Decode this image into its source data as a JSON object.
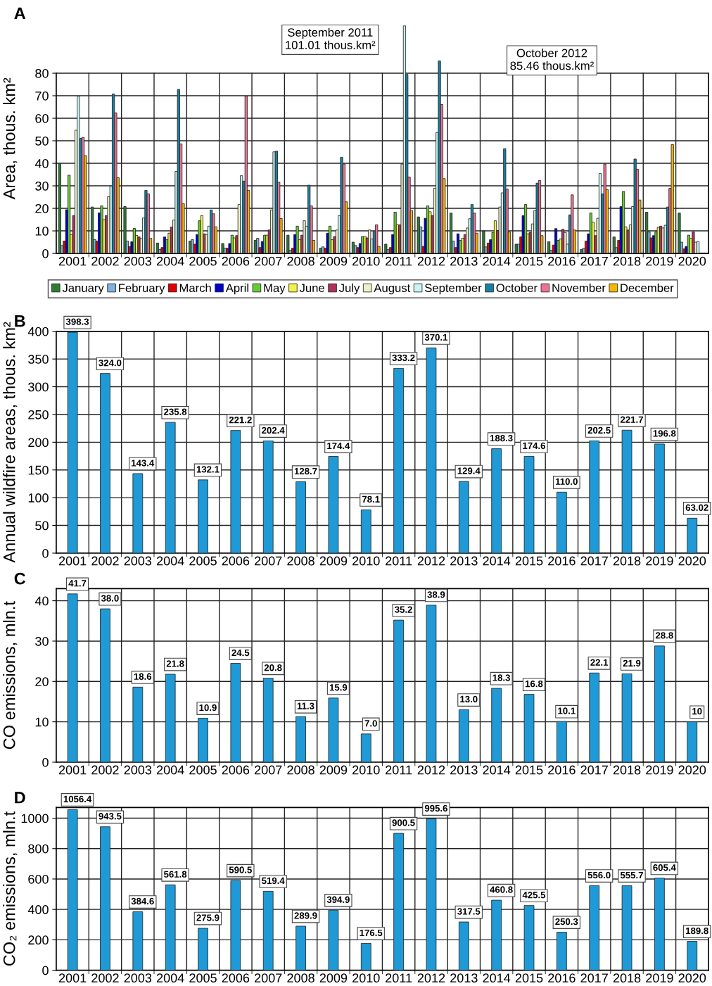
{
  "chart_data": [
    {
      "type": "bar",
      "title": "A",
      "ylabel": "Area, thous. km²",
      "categories": [
        "2001",
        "2002",
        "2003",
        "2004",
        "2005",
        "2006",
        "2007",
        "2008",
        "2009",
        "2010",
        "2011",
        "2012",
        "2013",
        "2014",
        "2015",
        "2016",
        "2017",
        "2018",
        "2019",
        "2020"
      ],
      "ylim": [
        0,
        102
      ],
      "yticks": [
        0,
        10,
        20,
        30,
        40,
        50,
        60,
        70,
        80
      ],
      "grid": true,
      "legend": "bottom",
      "series": [
        {
          "name": "January",
          "color": "#2e7d32",
          "values": [
            40,
            20.6,
            20.8,
            4.6,
            5.5,
            4.4,
            5.8,
            8.1,
            2.3,
            5.0,
            4.1,
            16.2,
            17.9,
            10.0,
            4.1,
            5.2,
            1.8,
            7.3,
            18.3,
            17.9
          ]
        },
        {
          "name": "February",
          "color": "#7fb2e0",
          "values": [
            3.5,
            6.1,
            5.5,
            1.7,
            6.1,
            2.3,
            6.7,
            1.4,
            2.9,
            3.5,
            1.7,
            11.8,
            5.5,
            2.9,
            4.1,
            1.4,
            2.3,
            2.6,
            9.5,
            5.0
          ]
        },
        {
          "name": "March",
          "color": "#e00000",
          "values": [
            5.5,
            5.5,
            3.1,
            2.6,
            4.1,
            2.3,
            2.6,
            2.3,
            2.3,
            2.6,
            2.6,
            3.1,
            2.6,
            4.6,
            7.3,
            3.7,
            5.5,
            5.8,
            6.9,
            2.0
          ]
        },
        {
          "name": "April",
          "color": "#0000cc",
          "values": [
            19.4,
            18.0,
            5.2,
            7.3,
            8.4,
            4.4,
            5.3,
            8.4,
            9.0,
            4.4,
            8.4,
            15.6,
            8.7,
            6.1,
            16.8,
            11.0,
            8.7,
            20.8,
            7.9,
            3.1
          ]
        },
        {
          "name": "May",
          "color": "#66cc33",
          "values": [
            34.7,
            21.1,
            11.1,
            6.1,
            14.5,
            8.1,
            8.1,
            12.1,
            12.1,
            7.5,
            18.3,
            21.1,
            5.8,
            9.3,
            21.7,
            5.8,
            17.9,
            27.5,
            9.5,
            8.1
          ]
        },
        {
          "name": "June",
          "color": "#f2f24a",
          "values": [
            8.4,
            15.0,
            8.0,
            9.0,
            16.8,
            6.9,
            8.1,
            6.1,
            6.1,
            7.5,
            12.7,
            18.5,
            6.7,
            14.5,
            8.7,
            6.4,
            13.9,
            11.8,
            11.6,
            6.7
          ]
        },
        {
          "name": "July",
          "color": "#b03060",
          "values": [
            16.8,
            16.8,
            7.3,
            11.7,
            8.7,
            7.9,
            10.4,
            8.1,
            7.5,
            6.9,
            12.7,
            16.8,
            8.4,
            10.1,
            9.3,
            10.7,
            7.9,
            10.4,
            12.1,
            9.5
          ]
        },
        {
          "name": "August",
          "color": "#f0eec8",
          "values": [
            54.7,
            25.2,
            6.6,
            14.8,
            8.4,
            21.7,
            19.3,
            14.5,
            10.4,
            10.4,
            39.7,
            28.9,
            11.3,
            20.6,
            13.1,
            9.3,
            15.6,
            12.7,
            11.3,
            5.0
          ]
        },
        {
          "name": "September",
          "color": "#c8f5f5",
          "values": [
            69.8,
            29.9,
            15.7,
            36.4,
            12.1,
            34.5,
            45.1,
            12.1,
            16.8,
            6.4,
            101.01,
            53.7,
            15.4,
            26.9,
            19.0,
            4.1,
            35.5,
            20.8,
            12.5,
            5.3
          ]
        },
        {
          "name": "October",
          "color": "#1a7fa0",
          "values": [
            51.1,
            70.8,
            28.0,
            72.8,
            19.3,
            32.1,
            45.4,
            30.3,
            42.7,
            9.6,
            79.5,
            85.46,
            21.7,
            46.5,
            31.2,
            17.1,
            26.4,
            41.9,
            20.6,
            null
          ]
        },
        {
          "name": "November",
          "color": "#f07090",
          "values": [
            51.5,
            62.4,
            26.4,
            48.6,
            17.6,
            69.8,
            31.6,
            21.1,
            39.7,
            12.7,
            33.9,
            66.1,
            17.9,
            28.6,
            32.4,
            26.0,
            39.7,
            37.4,
            28.9,
            null
          ]
        },
        {
          "name": "December",
          "color": "#f5b800",
          "values": [
            43.4,
            33.6,
            6.7,
            22.1,
            11.8,
            28.0,
            15.5,
            5.8,
            22.9,
            3.1,
            19.0,
            33.2,
            9.0,
            9.5,
            7.9,
            10.4,
            28.3,
            23.7,
            48.3,
            null
          ]
        }
      ],
      "annotations": [
        "September 2011\n101.01 thous.km²",
        "October 2012\n85.46 thous.km²"
      ]
    },
    {
      "type": "bar",
      "title": "B",
      "ylabel": "Annual wildfire areas, thous. km²",
      "categories": [
        "2001",
        "2002",
        "2003",
        "2004",
        "2005",
        "2006",
        "2007",
        "2008",
        "2009",
        "2010",
        "2011",
        "2012",
        "2013",
        "2014",
        "2015",
        "2016",
        "2017",
        "2018",
        "2019",
        "2020"
      ],
      "ylim": [
        0,
        400
      ],
      "yticks": [
        0,
        50,
        100,
        150,
        200,
        250,
        300,
        350,
        400
      ],
      "grid": true,
      "series": [
        {
          "color": "#1f9ad6",
          "values": [
            398.3,
            324.0,
            143.4,
            235.8,
            132.1,
            221.2,
            202.4,
            128.7,
            174.4,
            78.1,
            333.2,
            370.1,
            129.4,
            188.3,
            174.6,
            110.0,
            202.5,
            221.7,
            196.8,
            63.02
          ],
          "value_labels": [
            "398.3",
            "324.0",
            "143.4",
            "235.8",
            "132.1",
            "221.2",
            "202.4",
            "128.7",
            "174.4",
            "78.1",
            "333.2",
            "370.1",
            "129.4",
            "188.3",
            "174.6",
            "110.0",
            "202.5",
            "221.7",
            "196.8",
            "63.02"
          ]
        }
      ]
    },
    {
      "type": "bar",
      "title": "C",
      "ylabel": "CO emissions, mln.t",
      "categories": [
        "2001",
        "2002",
        "2003",
        "2004",
        "2005",
        "2006",
        "2007",
        "2008",
        "2009",
        "2010",
        "2011",
        "2012",
        "2013",
        "2014",
        "2015",
        "2016",
        "2017",
        "2018",
        "2019",
        "2020"
      ],
      "ylim": [
        0,
        43
      ],
      "yticks": [
        0,
        10,
        20,
        30,
        40
      ],
      "grid": true,
      "series": [
        {
          "color": "#1f9ad6",
          "values": [
            41.7,
            38.0,
            18.6,
            21.8,
            10.9,
            24.5,
            20.8,
            11.3,
            15.9,
            7.0,
            35.2,
            38.9,
            13.0,
            18.3,
            16.8,
            10.1,
            22.1,
            21.9,
            28.8,
            10
          ],
          "value_labels": [
            "41.7",
            "38.0",
            "18.6",
            "21.8",
            "10.9",
            "24.5",
            "20.8",
            "11.3",
            "15.9",
            "7.0",
            "35.2",
            "38.9",
            "13.0",
            "18.3",
            "16.8",
            "10.1",
            "22.1",
            "21.9",
            "28.8",
            "10"
          ]
        }
      ]
    },
    {
      "type": "bar",
      "title": "D",
      "ylabel": "CO₂ emissions, mln.t",
      "categories": [
        "2001",
        "2002",
        "2003",
        "2004",
        "2005",
        "2006",
        "2007",
        "2008",
        "2009",
        "2010",
        "2011",
        "2012",
        "2013",
        "2014",
        "2015",
        "2016",
        "2017",
        "2018",
        "2019",
        "2020"
      ],
      "ylim": [
        0,
        1070
      ],
      "yticks": [
        0,
        200,
        400,
        600,
        800,
        1000
      ],
      "grid": true,
      "series": [
        {
          "color": "#1f9ad6",
          "values": [
            1056.4,
            943.5,
            384.6,
            561.8,
            275.9,
            590.5,
            519.4,
            289.9,
            394.9,
            176.5,
            900.5,
            995.6,
            317.5,
            460.8,
            425.5,
            250.3,
            556.0,
            555.7,
            605.4,
            189.8
          ],
          "value_labels": [
            "1056.4",
            "943.5",
            "384.6",
            "561.8",
            "275.9",
            "590.5",
            "519.4",
            "289.9",
            "394.9",
            "176.5",
            "900.5",
            "995.6",
            "317.5",
            "460.8",
            "425.5",
            "250.3",
            "556.0",
            "555.7",
            "605.4",
            "189.8"
          ]
        }
      ]
    }
  ]
}
